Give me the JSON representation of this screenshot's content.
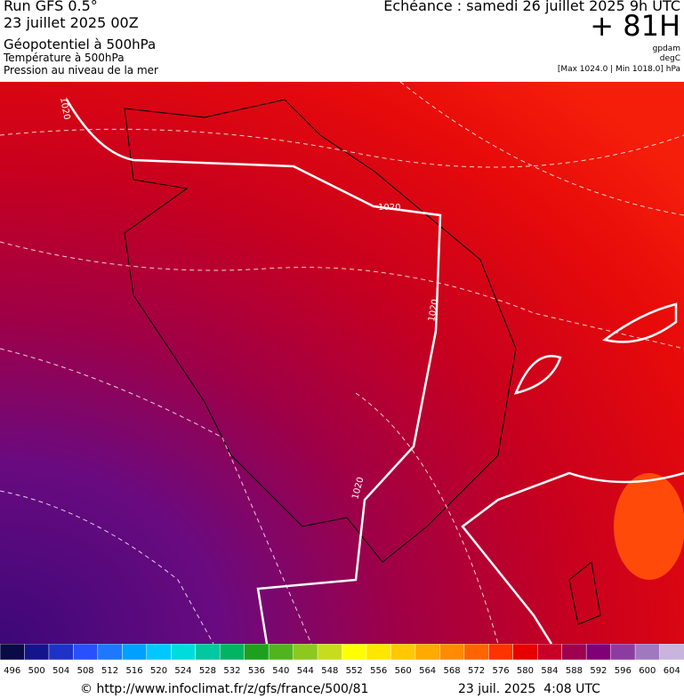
{
  "header": {
    "left": [
      "Run GFS 0.5°",
      "23 juillet 2025 00Z",
      "Géopotentiel à 500hPa",
      "Température à 500hPa",
      "Pression au niveau de la mer"
    ],
    "right": {
      "forecast": "Echéance : samedi 26 juillet 2025 9h UTC",
      "lead": "+ 81H",
      "units": [
        "gpdam",
        "degC",
        "[Max 1024.0 | Min 1018.0] hPa"
      ]
    }
  },
  "map": {
    "contour_labels": [
      "1020",
      "1020",
      "1020",
      "1020"
    ]
  },
  "legend": {
    "values": [
      496,
      500,
      504,
      508,
      512,
      516,
      520,
      524,
      528,
      532,
      536,
      540,
      544,
      548,
      552,
      556,
      560,
      564,
      568,
      572,
      576,
      580,
      584,
      588,
      592,
      596,
      600,
      604
    ],
    "colors": [
      "#0a0a46",
      "#14148c",
      "#1e32c8",
      "#2850ff",
      "#1e78ff",
      "#00a0ff",
      "#00c8ff",
      "#00dcdc",
      "#00c8a0",
      "#00b464",
      "#1ea01e",
      "#50b41e",
      "#8cc81e",
      "#c8dc1e",
      "#ffff00",
      "#ffe600",
      "#ffc800",
      "#ffaa00",
      "#ff8c00",
      "#ff6400",
      "#ff3200",
      "#e60000",
      "#c80028",
      "#a00050",
      "#800078",
      "#8c3ca0",
      "#a078c0",
      "#c8b4dc"
    ]
  },
  "footer": {
    "source": "© http://www.infoclimat.fr/z/gfs/france/500/81",
    "timestamp": "23 juil. 2025  4:08 UTC"
  }
}
